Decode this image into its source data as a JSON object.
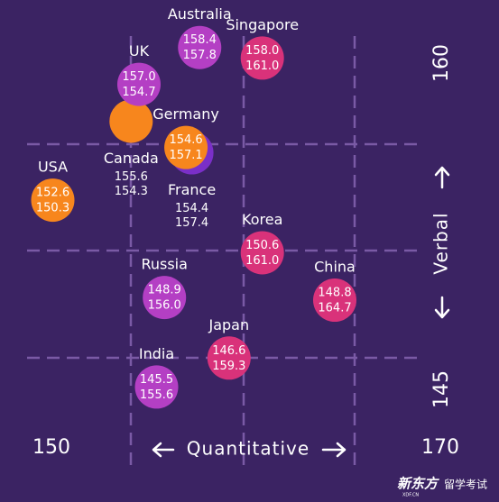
{
  "chart_data": {
    "type": "scatter",
    "x_label": "Quantitative",
    "y_label": "Verbal",
    "xlim": [
      150,
      170
    ],
    "xticks": [
      150,
      170
    ],
    "ylim": [
      145,
      160
    ],
    "yticks": [
      145,
      160
    ],
    "series": [
      {
        "name": "Australia",
        "color": "#b43fc4",
        "x": [
          157.8
        ],
        "x_labels": [
          "157.8"
        ],
        "values": [
          158.4
        ],
        "value_labels": [
          "158.4"
        ]
      },
      {
        "name": "Singapore",
        "color": "#d9327a",
        "x": [
          161.0
        ],
        "x_labels": [
          "161.0"
        ],
        "values": [
          158.0
        ],
        "value_labels": [
          "158.0"
        ]
      },
      {
        "name": "Canada",
        "color": "#f7861d",
        "x": [
          154.3
        ],
        "x_labels": [
          "154.3"
        ],
        "values": [
          155.6
        ],
        "value_labels": [
          "155.6"
        ]
      },
      {
        "name": "UK",
        "color": "#b43fc4",
        "x": [
          154.7
        ],
        "x_labels": [
          "154.7"
        ],
        "values": [
          157.0
        ],
        "value_labels": [
          "157.0"
        ]
      },
      {
        "name": "France",
        "color": "#7a2fc8",
        "x": [
          157.4
        ],
        "x_labels": [
          "157.4"
        ],
        "values": [
          154.4
        ],
        "value_labels": [
          "154.4"
        ]
      },
      {
        "name": "Germany",
        "color": "#f7861d",
        "x": [
          157.1
        ],
        "x_labels": [
          "157.1"
        ],
        "values": [
          154.6
        ],
        "value_labels": [
          "154.6"
        ]
      },
      {
        "name": "USA",
        "color": "#f7861d",
        "x": [
          150.3
        ],
        "x_labels": [
          "150.3"
        ],
        "values": [
          152.6
        ],
        "value_labels": [
          "152.6"
        ]
      },
      {
        "name": "Korea",
        "color": "#d9327a",
        "x": [
          161.0
        ],
        "x_labels": [
          "161.0"
        ],
        "values": [
          150.6
        ],
        "value_labels": [
          "150.6"
        ]
      },
      {
        "name": "Russia",
        "color": "#b43fc4",
        "x": [
          156.0
        ],
        "x_labels": [
          "156.0"
        ],
        "values": [
          148.9
        ],
        "value_labels": [
          "148.9"
        ]
      },
      {
        "name": "China",
        "color": "#d9327a",
        "x": [
          164.7
        ],
        "x_labels": [
          "164.7"
        ],
        "values": [
          148.8
        ],
        "value_labels": [
          "148.8"
        ]
      },
      {
        "name": "India",
        "color": "#b43fc4",
        "x": [
          155.6
        ],
        "x_labels": [
          "155.6"
        ],
        "values": [
          145.5
        ],
        "value_labels": [
          "145.5"
        ]
      },
      {
        "name": "Japan",
        "color": "#d9327a",
        "x": [
          159.3
        ],
        "x_labels": [
          "159.3"
        ],
        "values": [
          146.6
        ],
        "value_labels": [
          "146.6"
        ]
      }
    ]
  },
  "watermark": {
    "brand": "新东方",
    "url": "XDF.CN",
    "text": "留学考试"
  }
}
